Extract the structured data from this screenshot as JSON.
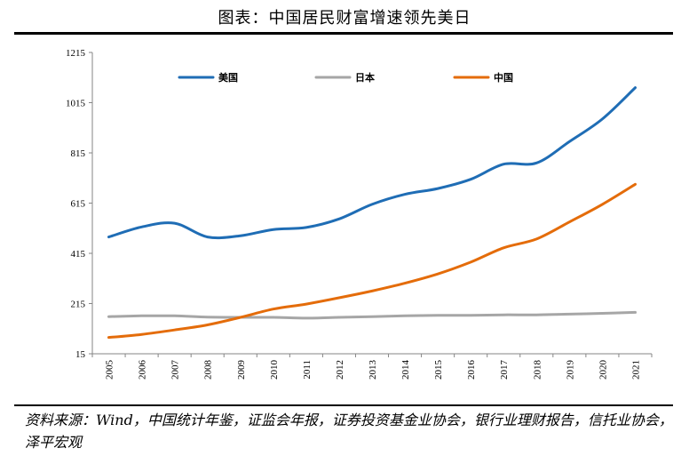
{
  "header": {
    "title": "图表：中国居民财富增速领先美日"
  },
  "footer": {
    "source": "资料来源：Wind，中国统计年鉴，证监会年报，证券投资基金业协会，银行业理财报告，信托业协会，泽平宏观"
  },
  "chart_data": {
    "type": "line",
    "x": [
      "2005",
      "2006",
      "2007",
      "2008",
      "2009",
      "2010",
      "2011",
      "2012",
      "2013",
      "2014",
      "2015",
      "2016",
      "2017",
      "2018",
      "2019",
      "2020",
      "2021"
    ],
    "yticks": [
      "15",
      "215",
      "415",
      "615",
      "815",
      "1015",
      "1215"
    ],
    "ylim": [
      15,
      1215
    ],
    "grid": false,
    "legend_position": "top",
    "series": [
      {
        "name": "美国",
        "color": "#1f6db5",
        "values": [
          480,
          520,
          535,
          480,
          485,
          510,
          518,
          552,
          610,
          650,
          673,
          710,
          770,
          775,
          860,
          950,
          1075
        ]
      },
      {
        "name": "日本",
        "color": "#a6a6a6",
        "values": [
          163,
          166,
          166,
          161,
          160,
          160,
          157,
          160,
          163,
          166,
          168,
          168,
          170,
          170,
          173,
          176,
          180
        ]
      },
      {
        "name": "中国",
        "color": "#e46c0a",
        "values": [
          80,
          92,
          110,
          130,
          160,
          193,
          213,
          238,
          265,
          296,
          333,
          380,
          437,
          472,
          540,
          610,
          690
        ]
      }
    ]
  }
}
